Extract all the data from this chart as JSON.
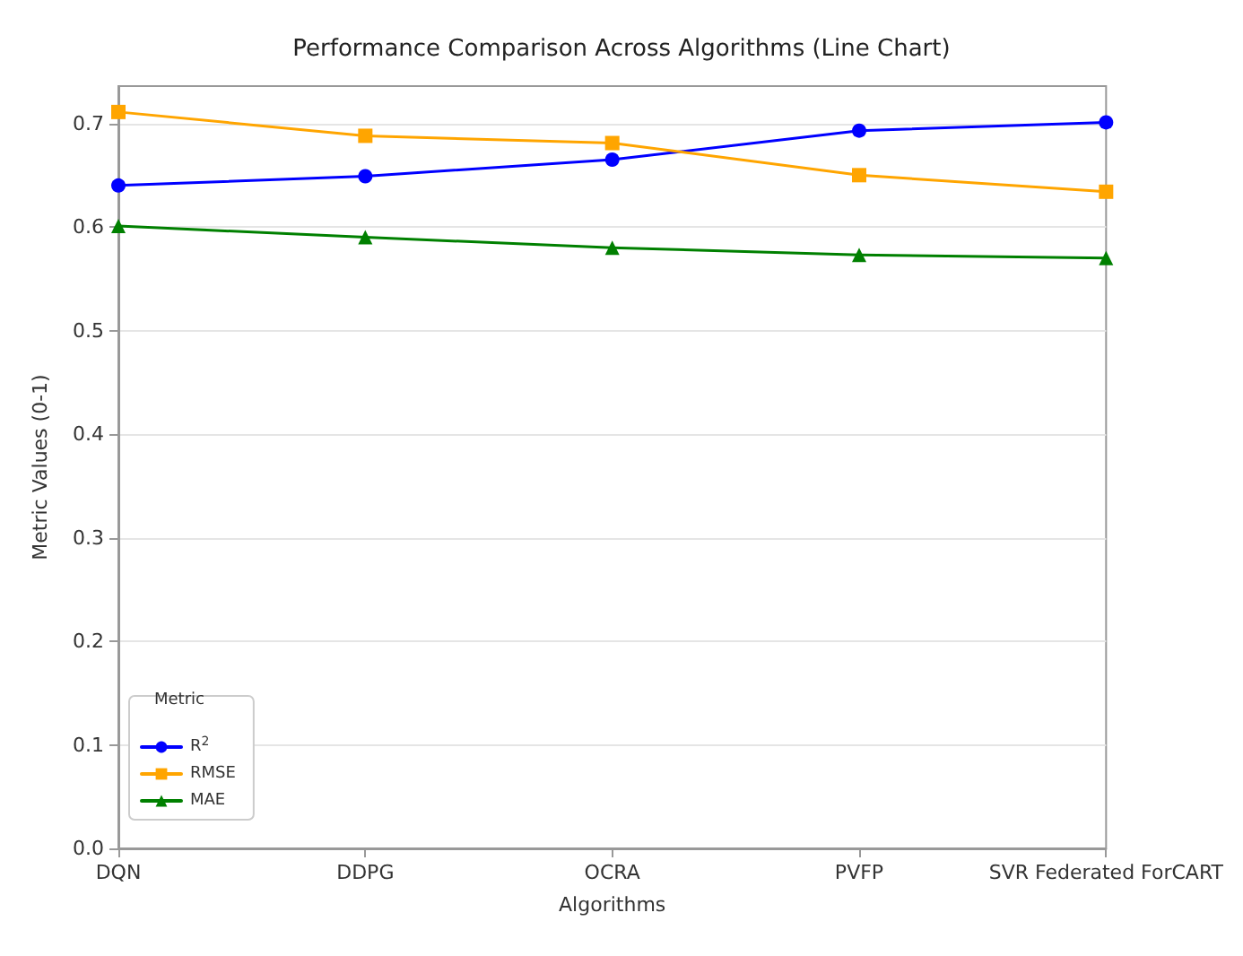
{
  "chart_data": {
    "type": "line",
    "title": "Performance Comparison Across Algorithms (Line Chart)",
    "xlabel": "Algorithms",
    "ylabel": "Metric Values (0-1)",
    "legend_title": "Metric",
    "categories": [
      "DQN",
      "DDPG",
      "OCRA",
      "PVFP",
      "SVR Federated ForCART"
    ],
    "series": [
      {
        "name": "R$^{2}$",
        "color": "#0000ff",
        "marker": "circle",
        "values": [
          0.64,
          0.649,
          0.665,
          0.693,
          0.701
        ]
      },
      {
        "name": "RMSE",
        "color": "#ffa500",
        "marker": "square",
        "values": [
          0.711,
          0.688,
          0.681,
          0.65,
          0.634
        ]
      },
      {
        "name": "MAE",
        "color": "#008000",
        "marker": "triangle",
        "values": [
          0.601,
          0.59,
          0.58,
          0.573,
          0.57
        ]
      }
    ],
    "ylim": [
      0,
      0.736
    ],
    "yticks": [
      {
        "value": 0,
        "label": "0.0"
      },
      0.1,
      0.2,
      0.3,
      0.4,
      0.5,
      0.6,
      0.7
    ],
    "grid": "y",
    "legend": "bottom left"
  }
}
